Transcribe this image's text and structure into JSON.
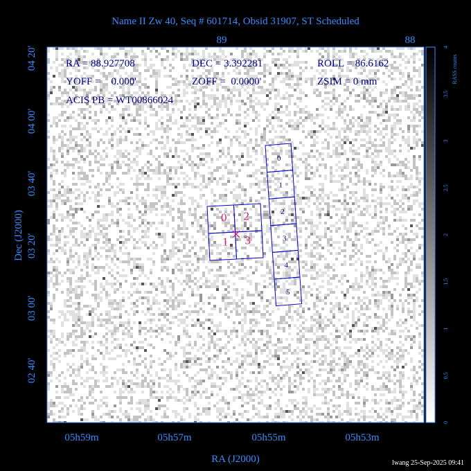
{
  "title": "Name II Zw 40, Seq # 601714, Obsid 31907, ST Scheduled",
  "top_axis": [
    "89",
    "88"
  ],
  "left_axis": [
    "04 20'",
    "04 00'",
    "03 40'",
    "03 20'",
    "03 00'",
    "02 40'"
  ],
  "bottom_axis": [
    "05h59m",
    "05h57m",
    "05h55m",
    "05h53m"
  ],
  "x_label": "RA (J2000)",
  "y_label": "Dec (J2000)",
  "info": [
    "RA = 88.927708",
    "DEC = 3.392281",
    "ROLL = 86.6162",
    "YOFF =    0.000'",
    "ZOFF =  0.0000'",
    "ZSIM = 0 mm",
    "ACIS PB = WT00866024"
  ],
  "colorbar": {
    "label": "RASS counts",
    "ticks": [
      "0",
      "0.5",
      "1",
      "1.5",
      "2",
      "2.5",
      "3",
      "3.5",
      "4"
    ]
  },
  "acis_s_chips": [
    "0",
    "1",
    "2",
    "3",
    "4",
    "5"
  ],
  "acis_i_chips": [
    "0",
    "2",
    "1",
    "3"
  ],
  "footer": "lwang 25-Sep-2025 09:41"
}
